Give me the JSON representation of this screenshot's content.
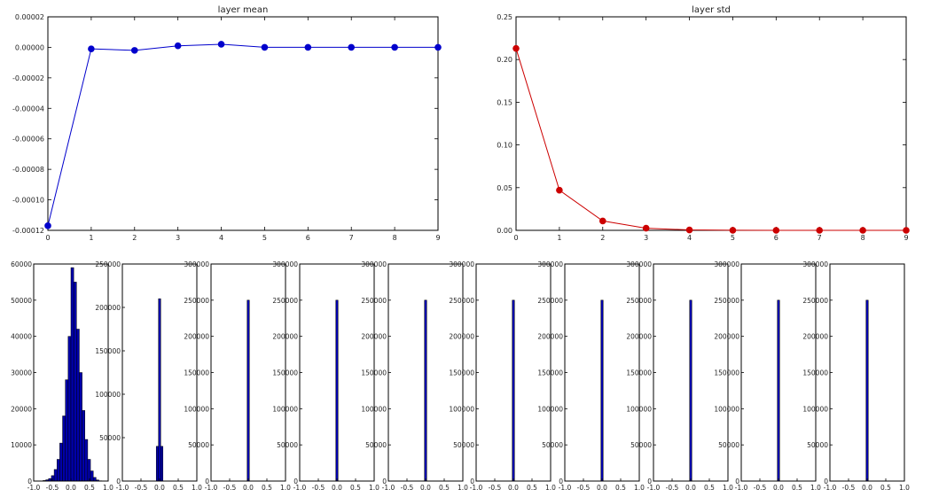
{
  "chart_data": [
    {
      "type": "line",
      "title": "layer mean",
      "color": "#0000cc",
      "x": [
        0,
        1,
        2,
        3,
        4,
        5,
        6,
        7,
        8,
        9
      ],
      "values": [
        -0.000117,
        -1e-06,
        -2e-06,
        1e-06,
        2e-06,
        0.0,
        0.0,
        0.0,
        0.0,
        0.0
      ],
      "xlim": [
        0,
        9
      ],
      "ylim": [
        -0.00012,
        2e-05
      ],
      "xticks": [
        "0",
        "1",
        "2",
        "3",
        "4",
        "5",
        "6",
        "7",
        "8",
        "9"
      ],
      "yticks": [
        {
          "value": 2e-05,
          "label": "0.00002"
        },
        {
          "value": 0.0,
          "label": "0.00000"
        },
        {
          "value": -2e-05,
          "label": "-0.00002"
        },
        {
          "value": -4e-05,
          "label": "-0.00004"
        },
        {
          "value": -6e-05,
          "label": "-0.00006"
        },
        {
          "value": -8e-05,
          "label": "-0.00008"
        },
        {
          "value": -0.0001,
          "label": "-0.00010"
        },
        {
          "value": -0.00012,
          "label": "-0.00012"
        }
      ],
      "grid": false
    },
    {
      "type": "line",
      "title": "layer std",
      "color": "#cc0000",
      "x": [
        0,
        1,
        2,
        3,
        4,
        5,
        6,
        7,
        8,
        9
      ],
      "values": [
        0.213,
        0.047,
        0.011,
        0.0025,
        0.0005,
        0.0001,
        0.0,
        0.0,
        0.0,
        0.0
      ],
      "xlim": [
        0,
        9
      ],
      "ylim": [
        0,
        0.25
      ],
      "xticks": [
        "0",
        "1",
        "2",
        "3",
        "4",
        "5",
        "6",
        "7",
        "8",
        "9"
      ],
      "yticks": [
        {
          "value": 0.25,
          "label": "0.25"
        },
        {
          "value": 0.2,
          "label": "0.20"
        },
        {
          "value": 0.15,
          "label": "0.15"
        },
        {
          "value": 0.1,
          "label": "0.10"
        },
        {
          "value": 0.05,
          "label": "0.05"
        },
        {
          "value": 0.0,
          "label": "0.00"
        }
      ],
      "grid": false
    },
    {
      "type": "bar",
      "title": "",
      "color": "#0000aa",
      "xlim": [
        -1,
        1
      ],
      "ylim": [
        0,
        60000
      ],
      "xticks": [
        "-1.0",
        "-0.5",
        "0.0",
        "0.5",
        "1.0"
      ],
      "yticks": [
        "0",
        "10000",
        "20000",
        "30000",
        "40000",
        "50000",
        "60000"
      ],
      "bins": [
        {
          "x0": -0.9,
          "x1": -0.825,
          "count": 20
        },
        {
          "x0": -0.825,
          "x1": -0.75,
          "count": 60
        },
        {
          "x0": -0.75,
          "x1": -0.675,
          "count": 150
        },
        {
          "x0": -0.675,
          "x1": -0.6,
          "count": 350
        },
        {
          "x0": -0.6,
          "x1": -0.525,
          "count": 700
        },
        {
          "x0": -0.525,
          "x1": -0.45,
          "count": 1500
        },
        {
          "x0": -0.45,
          "x1": -0.375,
          "count": 3200
        },
        {
          "x0": -0.375,
          "x1": -0.3,
          "count": 6000
        },
        {
          "x0": -0.3,
          "x1": -0.225,
          "count": 10500
        },
        {
          "x0": -0.225,
          "x1": -0.15,
          "count": 18000
        },
        {
          "x0": -0.15,
          "x1": -0.075,
          "count": 28000
        },
        {
          "x0": -0.075,
          "x1": 0.0,
          "count": 40000
        },
        {
          "x0": 0.0,
          "x1": 0.075,
          "count": 59000
        },
        {
          "x0": 0.075,
          "x1": 0.15,
          "count": 55000
        },
        {
          "x0": 0.15,
          "x1": 0.225,
          "count": 42000
        },
        {
          "x0": 0.225,
          "x1": 0.3,
          "count": 30000
        },
        {
          "x0": 0.3,
          "x1": 0.375,
          "count": 19500
        },
        {
          "x0": 0.375,
          "x1": 0.45,
          "count": 11500
        },
        {
          "x0": 0.45,
          "x1": 0.525,
          "count": 6000
        },
        {
          "x0": 0.525,
          "x1": 0.6,
          "count": 2800
        },
        {
          "x0": 0.6,
          "x1": 0.675,
          "count": 1000
        },
        {
          "x0": 0.675,
          "x1": 0.75,
          "count": 300
        },
        {
          "x0": 0.75,
          "x1": 0.825,
          "count": 80
        }
      ]
    },
    {
      "type": "bar",
      "title": "",
      "color": "#0000aa",
      "xlim": [
        -1,
        1
      ],
      "ylim": [
        0,
        250000
      ],
      "xticks": [
        "-1.0",
        "-0.5",
        "0.0",
        "0.5",
        "1.0"
      ],
      "yticks": [
        "0",
        "50000",
        "100000",
        "150000",
        "200000",
        "250000"
      ],
      "bins": [
        {
          "x0": -0.09,
          "x1": -0.03,
          "count": 40000
        },
        {
          "x0": -0.03,
          "x1": 0.03,
          "count": 210000
        },
        {
          "x0": 0.03,
          "x1": 0.09,
          "count": 40000
        }
      ]
    },
    {
      "type": "bar",
      "title": "",
      "color": "#0000aa",
      "xlim": [
        -1,
        1
      ],
      "ylim": [
        0,
        300000
      ],
      "xticks": [
        "-1.0",
        "-0.5",
        "0.0",
        "0.5",
        "1.0"
      ],
      "yticks": [
        "0",
        "50000",
        "100000",
        "150000",
        "200000",
        "250000",
        "300000"
      ],
      "bins": [
        {
          "x0": -0.03,
          "x1": 0.03,
          "count": 250000
        }
      ]
    },
    {
      "type": "bar",
      "title": "",
      "color": "#0000aa",
      "xlim": [
        -1,
        1
      ],
      "ylim": [
        0,
        300000
      ],
      "xticks": [
        "-1.0",
        "-0.5",
        "0.0",
        "0.5",
        "1.0"
      ],
      "yticks": [
        "0",
        "50000",
        "100000",
        "150000",
        "200000",
        "250000",
        "300000"
      ],
      "bins": [
        {
          "x0": -0.03,
          "x1": 0.03,
          "count": 250000
        }
      ]
    },
    {
      "type": "bar",
      "title": "",
      "color": "#0000aa",
      "xlim": [
        -1,
        1
      ],
      "ylim": [
        0,
        300000
      ],
      "xticks": [
        "-1.0",
        "-0.5",
        "0.0",
        "0.5",
        "1.0"
      ],
      "yticks": [
        "0",
        "50000",
        "100000",
        "150000",
        "200000",
        "250000",
        "300000"
      ],
      "bins": [
        {
          "x0": -0.03,
          "x1": 0.03,
          "count": 250000
        }
      ]
    },
    {
      "type": "bar",
      "title": "",
      "color": "#0000aa",
      "xlim": [
        -1,
        1
      ],
      "ylim": [
        0,
        300000
      ],
      "xticks": [
        "-1.0",
        "-0.5",
        "0.0",
        "0.5",
        "1.0"
      ],
      "yticks": [
        "0",
        "50000",
        "100000",
        "150000",
        "200000",
        "250000",
        "300000"
      ],
      "bins": [
        {
          "x0": -0.03,
          "x1": 0.03,
          "count": 250000
        }
      ]
    },
    {
      "type": "bar",
      "title": "",
      "color": "#0000aa",
      "xlim": [
        -1,
        1
      ],
      "ylim": [
        0,
        300000
      ],
      "xticks": [
        "-1.0",
        "-0.5",
        "0.0",
        "0.5",
        "1.0"
      ],
      "yticks": [
        "0",
        "50000",
        "100000",
        "150000",
        "200000",
        "250000",
        "300000"
      ],
      "bins": [
        {
          "x0": -0.03,
          "x1": 0.03,
          "count": 250000
        }
      ]
    },
    {
      "type": "bar",
      "title": "",
      "color": "#0000aa",
      "xlim": [
        -1,
        1
      ],
      "ylim": [
        0,
        300000
      ],
      "xticks": [
        "-1.0",
        "-0.5",
        "0.0",
        "0.5",
        "1.0"
      ],
      "yticks": [
        "0",
        "50000",
        "100000",
        "150000",
        "200000",
        "250000",
        "300000"
      ],
      "bins": [
        {
          "x0": -0.03,
          "x1": 0.03,
          "count": 250000
        }
      ]
    },
    {
      "type": "bar",
      "title": "",
      "color": "#0000aa",
      "xlim": [
        -1,
        1
      ],
      "ylim": [
        0,
        300000
      ],
      "xticks": [
        "-1.0",
        "-0.5",
        "0.0",
        "0.5",
        "1.0"
      ],
      "yticks": [
        "0",
        "50000",
        "100000",
        "150000",
        "200000",
        "250000",
        "300000"
      ],
      "bins": [
        {
          "x0": -0.03,
          "x1": 0.03,
          "count": 250000
        }
      ]
    },
    {
      "type": "bar",
      "title": "",
      "color": "#0000aa",
      "xlim": [
        -1,
        1
      ],
      "ylim": [
        0,
        300000
      ],
      "xticks": [
        "-1.0",
        "-0.5",
        "0.0",
        "0.5",
        "1.0"
      ],
      "yticks": [
        "0",
        "50000",
        "100000",
        "150000",
        "200000",
        "250000",
        "300000"
      ],
      "bins": [
        {
          "x0": -0.03,
          "x1": 0.03,
          "count": 250000
        }
      ]
    }
  ]
}
